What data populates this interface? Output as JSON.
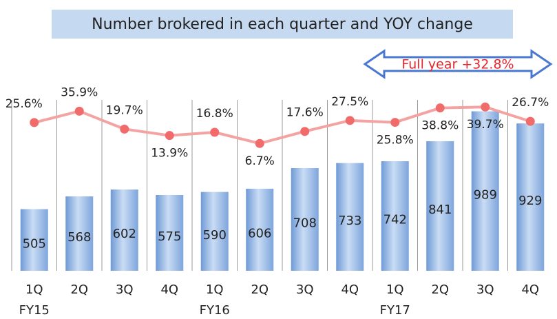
{
  "chart_data": {
    "type": "combo",
    "title": "Number brokered in each quarter and YOY change",
    "annotation": "Full year +32.8%",
    "categories": [
      "1Q",
      "2Q",
      "3Q",
      "4Q",
      "1Q",
      "2Q",
      "3Q",
      "4Q",
      "1Q",
      "2Q",
      "3Q",
      "4Q"
    ],
    "fiscal_years": [
      "FY15",
      null,
      null,
      null,
      "FY16",
      null,
      null,
      null,
      "FY17",
      null,
      null,
      null
    ],
    "ylim": [
      200,
      1100
    ],
    "y2lim": [
      0,
      100
    ],
    "series": [
      {
        "type": "bar",
        "color": "#8fb4e3",
        "values": [
          505,
          568,
          602,
          575,
          590,
          606,
          708,
          733,
          742,
          841,
          989,
          929
        ]
      },
      {
        "type": "line",
        "axis": "y2",
        "color": "#f4a3a3",
        "marker_color": "#f26b6b",
        "values": [
          25.6,
          35.9,
          19.7,
          13.9,
          16.8,
          6.7,
          17.6,
          27.5,
          25.8,
          38.8,
          39.7,
          26.7
        ],
        "value_labels": [
          "25.6%",
          "35.9%",
          "19.7%",
          "13.9%",
          "16.8%",
          "6.7%",
          "17.6%",
          "27.5%",
          "25.8%",
          "38.8%",
          "39.7%",
          "26.7%"
        ]
      }
    ]
  }
}
